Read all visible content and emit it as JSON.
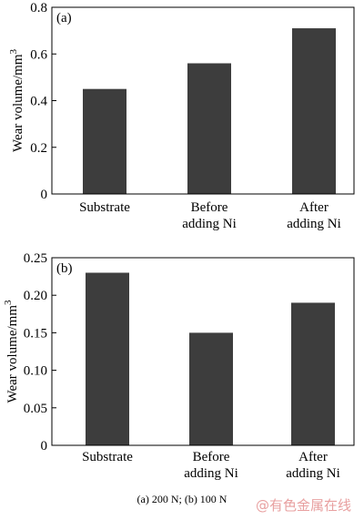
{
  "chart_data": [
    {
      "type": "bar",
      "panel_label": "(a)",
      "categories": [
        [
          "Substrate"
        ],
        [
          "Before",
          "adding Ni"
        ],
        [
          "After",
          "adding Ni"
        ]
      ],
      "values": [
        0.45,
        0.56,
        0.71
      ],
      "ylabel": "Wear volume/mm",
      "ylabel_sup": "3",
      "ylim": [
        0,
        0.8
      ],
      "yticks": [
        0,
        0.2,
        0.4,
        0.6,
        0.8
      ],
      "ytick_labels": [
        "0",
        "0.2",
        "0.4",
        "0.6",
        "0.8"
      ],
      "bar_color": "#3d3d3d",
      "grid": false
    },
    {
      "type": "bar",
      "panel_label": "(b)",
      "categories": [
        [
          "Substrate"
        ],
        [
          "Before",
          "adding Ni"
        ],
        [
          "After",
          "adding Ni"
        ]
      ],
      "values": [
        0.23,
        0.15,
        0.19
      ],
      "ylabel": "Wear volume/mm",
      "ylabel_sup": "3",
      "ylim": [
        0,
        0.25
      ],
      "yticks": [
        0,
        0.05,
        0.1,
        0.15,
        0.2,
        0.25
      ],
      "ytick_labels": [
        "0",
        "0.05",
        "0.10",
        "0.15",
        "0.20",
        "0.25"
      ],
      "bar_color": "#3d3d3d",
      "grid": false
    }
  ],
  "caption": "(a) 200 N; (b) 100 N",
  "watermark": "@有色金属在线"
}
